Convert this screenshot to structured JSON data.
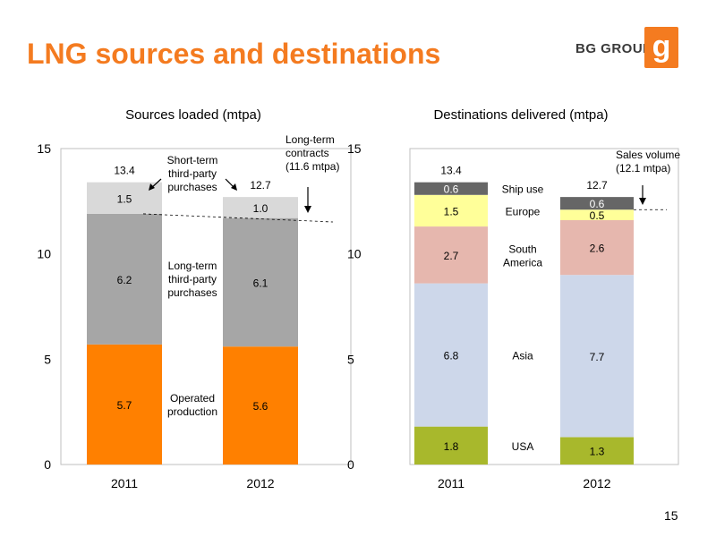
{
  "page": {
    "title": "LNG sources and destinations",
    "logo_text": "BG GROUP",
    "page_number": "15",
    "colors": {
      "accent": "#f47b20"
    }
  },
  "chart_data": [
    {
      "type": "bar",
      "stacked": true,
      "title": "Sources loaded (mtpa)",
      "categories": [
        "2011",
        "2012"
      ],
      "ylim": [
        0,
        15
      ],
      "yticks": [
        "0",
        "5",
        "10",
        "15"
      ],
      "series": [
        {
          "name": "Operated production",
          "values": [
            5.7,
            5.6
          ],
          "labels": [
            "5.7",
            "5.6"
          ],
          "color": "#ff8000"
        },
        {
          "name": "Long-term third-party purchases",
          "values": [
            6.2,
            6.1
          ],
          "labels": [
            "6.2",
            "6.1"
          ],
          "color": "#a6a6a6"
        },
        {
          "name": "Short-term third-party purchases",
          "values": [
            1.5,
            1.0
          ],
          "labels": [
            "1.5",
            "1.0"
          ],
          "color": "#d9d9d9"
        }
      ],
      "totals": [
        "13.4",
        "12.7"
      ],
      "annotations": {
        "short_term": [
          "Short-term",
          "third-party",
          "purchases"
        ],
        "long_term_purchases": [
          "Long-term",
          "third-party",
          "purchases"
        ],
        "operated": [
          "Operated",
          "production"
        ],
        "contracts": [
          "Long-term",
          "contracts",
          "(11.6 mtpa)"
        ]
      },
      "reference_line": {
        "value": 11.6
      }
    },
    {
      "type": "bar",
      "stacked": true,
      "title": "Destinations delivered (mtpa)",
      "categories": [
        "2011",
        "2012"
      ],
      "ylim": [
        0,
        15
      ],
      "yticks": [
        "0",
        "5",
        "10",
        "15"
      ],
      "series": [
        {
          "name": "USA",
          "values": [
            1.8,
            1.3
          ],
          "labels": [
            "1.8",
            "1.3"
          ],
          "color": "#a8b82c"
        },
        {
          "name": "Asia",
          "values": [
            6.8,
            7.7
          ],
          "labels": [
            "6.8",
            "7.7"
          ],
          "color": "#cdd7ea"
        },
        {
          "name": "South America",
          "values": [
            2.7,
            2.6
          ],
          "labels": [
            "2.7",
            "2.6"
          ],
          "color": "#e6b7ae"
        },
        {
          "name": "Europe",
          "values": [
            1.5,
            0.5
          ],
          "labels": [
            "1.5",
            "0.5"
          ],
          "color": "#ffff99"
        },
        {
          "name": "Ship use",
          "values": [
            0.6,
            0.6
          ],
          "labels": [
            "0.6",
            "0.6"
          ],
          "color": "#666666"
        }
      ],
      "totals": [
        "13.4",
        "12.7"
      ],
      "series_labels": {
        "USA": [
          "USA"
        ],
        "Asia": [
          "Asia"
        ],
        "South America": [
          "South",
          "America"
        ],
        "Europe": [
          "Europe"
        ],
        "Ship use": [
          "Ship use"
        ]
      },
      "annotations": {
        "sales": [
          "Sales volume",
          "(12.1 mtpa)"
        ]
      },
      "reference_line": {
        "value": 12.1
      }
    }
  ]
}
